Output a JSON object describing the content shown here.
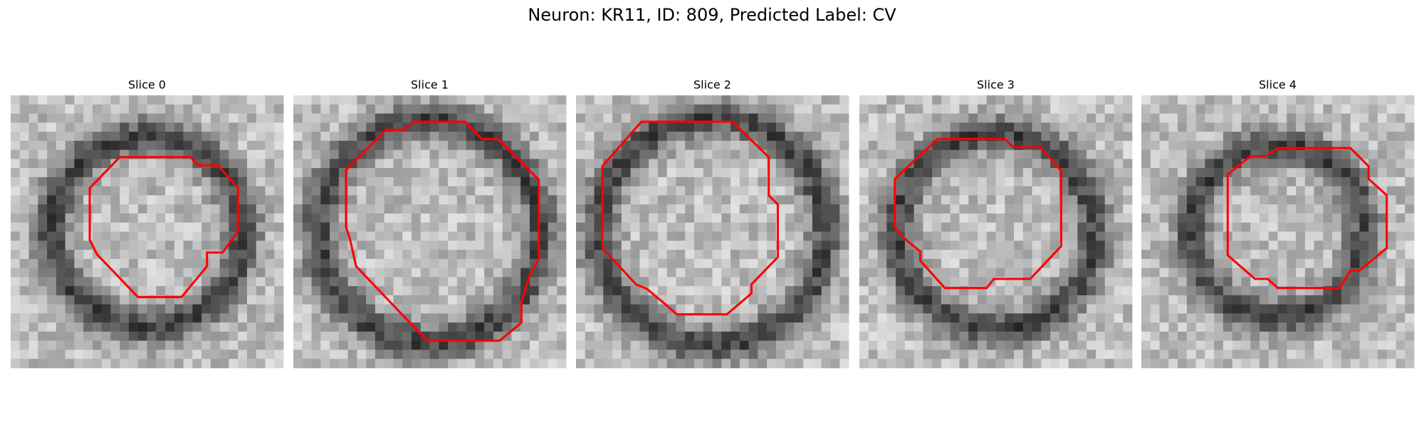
{
  "title": "Neuron: KR11, ID: 809, Predicted Label: CV",
  "panels": [
    {
      "title": "Slice 0"
    },
    {
      "title": "Slice 1"
    },
    {
      "title": "Slice 2"
    },
    {
      "title": "Slice 3"
    },
    {
      "title": "Slice 4"
    }
  ]
}
